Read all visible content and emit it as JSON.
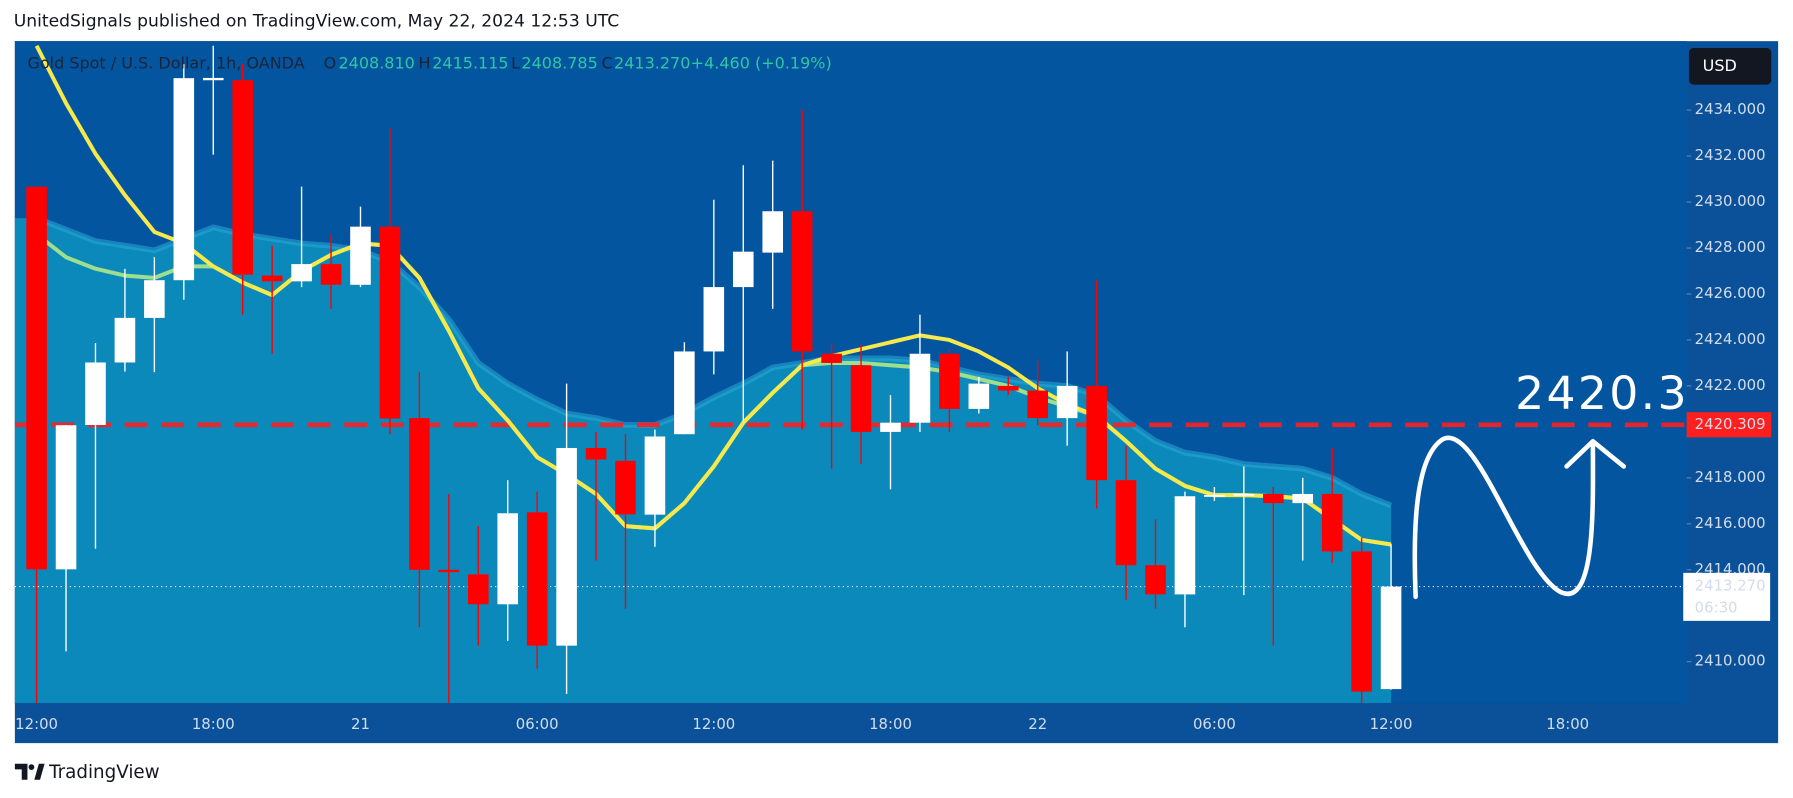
{
  "header": {
    "text": "UnitedSignals published on TradingView.com, May 22, 2024 12:53 UTC"
  },
  "footer": {
    "logo_text": "TradingView"
  },
  "chart_data": {
    "type": "candlestick",
    "currency": "USD",
    "legend": {
      "symbol": "Gold Spot / U.S. Dollar, 1h, OANDA",
      "open_label": "O",
      "open": "2408.810",
      "high_label": "H",
      "high": "2415.115",
      "low_label": "L",
      "low": "2408.785",
      "close_label": "C",
      "close": "2413.270",
      "change": "+4.460 (+0.19%)"
    },
    "annotation": "2420.3",
    "categories": [
      "12:00",
      null,
      null,
      null,
      null,
      null,
      "18:00",
      null,
      null,
      null,
      null,
      "21",
      null,
      null,
      null,
      null,
      null,
      "06:00",
      null,
      null,
      null,
      null,
      null,
      "12:00",
      null,
      null,
      null,
      null,
      null,
      "18:00",
      null,
      null,
      null,
      null,
      "22",
      null,
      null,
      null,
      null,
      null,
      "06:00",
      null,
      null,
      null,
      null,
      null,
      "12:00",
      null,
      null,
      null,
      null,
      null,
      "18:00"
    ],
    "open": [
      2430.67,
      2414.02,
      2420.3,
      2423.02,
      2424.96,
      2426.6,
      2435.3,
      2435.3,
      2426.8,
      2426.55,
      2427.3,
      2426.4,
      2428.93,
      2420.6,
      2414.0,
      2413.8,
      2412.5,
      2416.5,
      2410.7,
      2419.3,
      2418.74,
      2416.4,
      2419.9,
      2423.5,
      2426.3,
      2427.8,
      2429.6,
      2423.4,
      2422.9,
      2420.0,
      2420.4,
      2423.4,
      2421.0,
      2422.0,
      2421.8,
      2420.6,
      2422.0,
      2417.9,
      2414.2,
      2412.93,
      2417.25,
      2417.25,
      2417.3,
      2416.9,
      2417.3,
      2414.8,
      2408.81,
      null,
      null,
      null,
      null,
      null,
      null
    ],
    "high": [
      2430.67,
      2420.3,
      2423.86,
      2427.09,
      2427.6,
      2436.0,
      2436.8,
      2436.0,
      2428.1,
      2430.67,
      2428.6,
      2429.8,
      2433.2,
      2422.6,
      2417.3,
      2415.9,
      2417.9,
      2417.4,
      2422.1,
      2420.0,
      2419.9,
      2420.1,
      2423.9,
      2430.1,
      2431.6,
      2431.8,
      2434.0,
      2423.86,
      2423.8,
      2421.6,
      2425.1,
      2423.6,
      2422.4,
      2422.4,
      2423.1,
      2423.5,
      2426.6,
      2419.4,
      2416.2,
      2417.4,
      2417.6,
      2418.5,
      2417.6,
      2418.0,
      2419.3,
      2415.4,
      2415.115,
      null,
      null,
      null,
      null,
      null,
      null
    ],
    "low": [
      2408.2,
      2410.45,
      2414.92,
      2422.62,
      2422.6,
      2425.75,
      2432.06,
      2425.1,
      2423.4,
      2426.3,
      2425.35,
      2426.3,
      2419.9,
      2411.5,
      2408.2,
      2410.7,
      2410.9,
      2409.7,
      2408.6,
      2414.4,
      2412.3,
      2415.0,
      2419.9,
      2422.5,
      2420.5,
      2425.35,
      2420.1,
      2418.4,
      2418.6,
      2417.5,
      2420.0,
      2420.0,
      2420.8,
      2421.6,
      2420.3,
      2419.4,
      2416.66,
      2412.7,
      2412.3,
      2411.5,
      2417.0,
      2412.9,
      2410.7,
      2414.4,
      2414.3,
      2408.2,
      2408.785,
      null,
      null,
      null,
      null,
      null,
      null
    ],
    "close": [
      2414.02,
      2420.29,
      2423.02,
      2424.96,
      2426.6,
      2435.39,
      2435.4,
      2426.84,
      2426.55,
      2427.3,
      2426.4,
      2428.93,
      2420.58,
      2414.0,
      2413.9,
      2412.5,
      2416.46,
      2410.7,
      2419.3,
      2418.8,
      2416.41,
      2419.8,
      2423.5,
      2426.3,
      2427.84,
      2429.6,
      2423.5,
      2423.0,
      2420.0,
      2420.4,
      2423.4,
      2421.0,
      2422.1,
      2421.8,
      2420.6,
      2422.0,
      2417.9,
      2414.2,
      2412.93,
      2417.2,
      2417.25,
      2417.3,
      2416.9,
      2417.3,
      2414.8,
      2408.7,
      2413.27,
      null,
      null,
      null,
      null,
      null,
      null
    ],
    "up_color": "#ffffff",
    "down_color": "#ff0000",
    "band": {
      "color": "#0b89bb",
      "values": [
        2429.3,
        2428.8,
        2428.3,
        2428.1,
        2427.9,
        2428.4,
        2428.9,
        2428.6,
        2428.4,
        2428.2,
        2428.1,
        2427.9,
        2427.4,
        2426.3,
        2424.9,
        2423.0,
        2422.1,
        2421.4,
        2420.8,
        2420.6,
        2420.3,
        2420.3,
        2420.8,
        2421.5,
        2422.1,
        2422.8,
        2423.0,
        2423.2,
        2423.2,
        2423.2,
        2423.1,
        2422.8,
        2422.5,
        2422.3,
        2422.1,
        2422.0,
        2421.6,
        2420.5,
        2419.6,
        2419.1,
        2418.9,
        2418.6,
        2418.5,
        2418.4,
        2418.0,
        2417.3,
        2416.8,
        null,
        null,
        null,
        null,
        null,
        null
      ]
    },
    "series": [
      {
        "color": "#9ede8c",
        "values": [
          2428.6,
          2427.6,
          2427.1,
          2426.8,
          2426.7,
          2427.2,
          2427.2,
          2426.5,
          2425.95,
          2427.0,
          2427.7,
          2428.2,
          2428.1,
          2426.7,
          2424.4,
          2421.9,
          2420.5,
          2418.9,
          2418.15,
          2417.3,
          2415.9,
          2415.8,
          2416.9,
          2418.5,
          2420.4,
          2421.7,
          2422.9,
          2423.0,
          2423.0,
          2422.9,
          2422.8,
          2422.6,
          2422.3,
          2422.0,
          2421.5,
          2421.1,
          2420.7,
          2419.6,
          2418.4,
          2417.65,
          2417.25,
          2417.25,
          2417.2,
          2417.1,
          2416.2,
          2415.3,
          2415.1,
          null,
          null,
          null,
          null,
          null,
          null
        ]
      },
      {
        "color": "#f7e84c",
        "values": [
          2436.8,
          2434.3,
          2432.1,
          2430.3,
          2428.7,
          2428.2,
          2427.2,
          2426.5,
          2425.95,
          2427.0,
          2427.7,
          2428.2,
          2428.1,
          2426.7,
          2424.4,
          2421.9,
          2420.5,
          2418.9,
          2418.15,
          2417.3,
          2415.9,
          2415.8,
          2416.9,
          2418.5,
          2420.4,
          2421.7,
          2422.9,
          2423.3,
          2423.6,
          2423.9,
          2424.2,
          2424.0,
          2423.5,
          2422.8,
          2421.9,
          2421.2,
          2420.7,
          2419.6,
          2418.4,
          2417.65,
          2417.25,
          2417.25,
          2417.2,
          2417.1,
          2416.2,
          2415.3,
          2415.1,
          null,
          null,
          null,
          null,
          null,
          null
        ]
      }
    ],
    "levels": [
      {
        "value": 2420.309,
        "label": "2420.309",
        "color": "#ff1f1f",
        "style": "dashed"
      }
    ],
    "last_price": {
      "value": 2413.27,
      "label": "2413.270",
      "countdown": "06:30",
      "color": "#ffffff"
    },
    "ylim": [
      2408.2,
      2437.0
    ],
    "yticks": [
      {
        "value": 2410,
        "label": "2410.000"
      },
      {
        "value": 2414,
        "label": "2414.000"
      },
      {
        "value": 2416,
        "label": "2416.000"
      },
      {
        "value": 2418,
        "label": "2418.000"
      },
      {
        "value": 2422,
        "label": "2422.000"
      },
      {
        "value": 2424,
        "label": "2424.000"
      },
      {
        "value": 2426,
        "label": "2426.000"
      },
      {
        "value": 2428,
        "label": "2428.000"
      },
      {
        "value": 2430,
        "label": "2430.000"
      },
      {
        "value": 2432,
        "label": "2432.000"
      },
      {
        "value": 2434,
        "label": "2434.000"
      }
    ],
    "grid": false
  }
}
